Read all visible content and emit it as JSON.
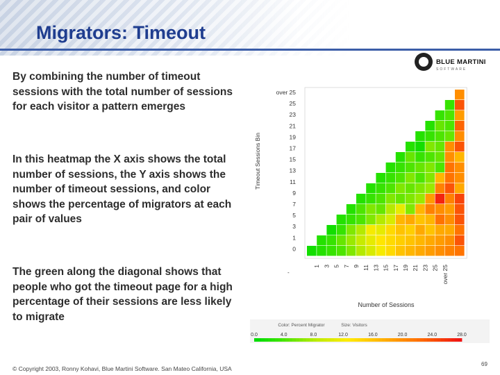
{
  "slide": {
    "title": "Migrators: Timeout",
    "paragraphs": [
      "By combining the number of timeout sessions with the total number of sessions for each visitor a pattern emerges",
      "In this heatmap the X axis shows the total number of sessions, the Y axis shows the number of timeout sessions, and color shows the percentage of migrators at each pair of values",
      "The green along the diagonal shows that people who got the timeout page for a high percentage of their sessions are less likely to migrate"
    ],
    "footer": "© Copyright 2003, Ronny Kohavi, Blue Martini Software. San Mateo California, USA",
    "page_number": "69"
  },
  "logo": {
    "text": "BLUE MARTINI",
    "subtext": "SOFTWARE"
  },
  "colors": {
    "title": "#1f3d8f",
    "rule": "#3b5da8",
    "text": "#2d2d2d"
  },
  "chart_data": {
    "type": "heatmap",
    "ylabel": "Timeout Sessions Bin",
    "xlabel": "Number of Sessions",
    "y_tick_labels": [
      "over 25",
      "25",
      "23",
      "21",
      "19",
      "17",
      "15",
      "13",
      "11",
      "9",
      "7",
      "5",
      "3",
      "1",
      "0"
    ],
    "x_tick_labels": [
      "1",
      "3",
      "5",
      "7",
      "9",
      "11",
      "13",
      "15",
      "17",
      "19",
      "21",
      "23",
      "25",
      "over 25"
    ],
    "x_axis_extra_label": "-",
    "legend": {
      "color_title": "Color: Percent Migrator",
      "size_title": "Size: Visitors",
      "ticks": [
        "0.0",
        "4.0",
        "8.0",
        "12.0",
        "16.0",
        "20.0",
        "24.0",
        "28.0"
      ]
    },
    "color_range": [
      0,
      28
    ],
    "rows": 16,
    "cols": 16,
    "values": [
      [
        0,
        0,
        0,
        0,
        0,
        0,
        0,
        0,
        0,
        0,
        0,
        0,
        0,
        0,
        0,
        20
      ],
      [
        0,
        0,
        0,
        0,
        0,
        0,
        0,
        0,
        0,
        0,
        0,
        0,
        0,
        0,
        3,
        24
      ],
      [
        0,
        0,
        0,
        0,
        0,
        0,
        0,
        0,
        0,
        0,
        0,
        0,
        0,
        3,
        4,
        19
      ],
      [
        0,
        0,
        0,
        0,
        0,
        0,
        0,
        0,
        0,
        0,
        0,
        0,
        2,
        5,
        4,
        23
      ],
      [
        0,
        0,
        0,
        0,
        0,
        0,
        0,
        0,
        0,
        0,
        0,
        2,
        3,
        4,
        5,
        20
      ],
      [
        0,
        0,
        0,
        0,
        0,
        0,
        0,
        0,
        0,
        0,
        2,
        1,
        6,
        5,
        20,
        24
      ],
      [
        0,
        0,
        0,
        0,
        0,
        0,
        0,
        0,
        0,
        2,
        5,
        3,
        4,
        5,
        20,
        17
      ],
      [
        0,
        0,
        0,
        0,
        0,
        0,
        0,
        0,
        2,
        3,
        4,
        5,
        6,
        4,
        22,
        20
      ],
      [
        0,
        0,
        0,
        0,
        0,
        0,
        0,
        2,
        3,
        4,
        6,
        4,
        6,
        17,
        22,
        20
      ],
      [
        0,
        0,
        0,
        0,
        0,
        0,
        2,
        3,
        4,
        6,
        5,
        6,
        7,
        21,
        24,
        18
      ],
      [
        0,
        0,
        0,
        0,
        0,
        2,
        3,
        4,
        6,
        5,
        6,
        7,
        19,
        27,
        21,
        25
      ],
      [
        0,
        0,
        0,
        0,
        2,
        4,
        6,
        5,
        8,
        11,
        6,
        17,
        21,
        20,
        19,
        24
      ],
      [
        0,
        0,
        0,
        2,
        3,
        4,
        6,
        8,
        10,
        17,
        18,
        16,
        17,
        22,
        20,
        24
      ],
      [
        0,
        0,
        1,
        3,
        6,
        8,
        12,
        11,
        14,
        16,
        15,
        18,
        16,
        18,
        18,
        22
      ],
      [
        0,
        2,
        3,
        5,
        7,
        9,
        11,
        13,
        14,
        15,
        16,
        17,
        18,
        19,
        20,
        24
      ],
      [
        1,
        2,
        3,
        4,
        6,
        8,
        10,
        12,
        14,
        16,
        17,
        18,
        19,
        20,
        21,
        22
      ]
    ]
  }
}
